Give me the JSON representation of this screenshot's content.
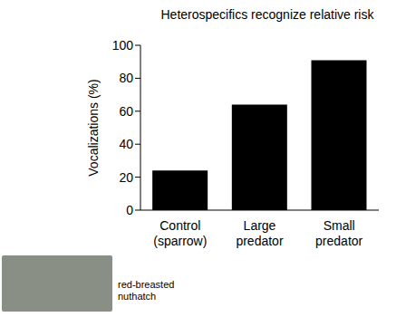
{
  "chart_data": {
    "type": "bar",
    "title": "Heterospecifics recognize relative risk",
    "ylabel": "Vocalizations (%)",
    "categories": [
      "Control\n(sparrow)",
      "Large\npredator",
      "Small\npredator"
    ],
    "values": [
      24,
      64,
      91
    ],
    "color": "#000000",
    "ylim": [
      0,
      100
    ],
    "yticks": [
      0,
      20,
      40,
      60,
      80,
      100
    ],
    "grid": false,
    "annotations": [
      "red-breasted\nnuthatch"
    ]
  }
}
